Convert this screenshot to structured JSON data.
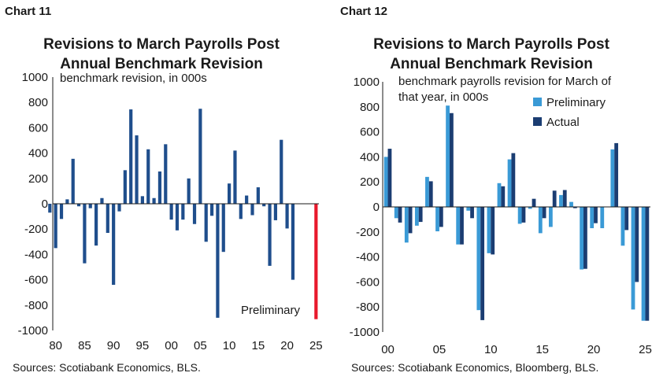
{
  "chart_data": [
    {
      "type": "bar",
      "label": "Chart 11",
      "title": "Revisions to March Payrolls Post Annual Benchmark Revision",
      "title_lines": [
        "Revisions to March Payrolls Post",
        "Annual Benchmark Revision"
      ],
      "annotation_lines": [
        "benchmark revision, in 000s"
      ],
      "source": "Sources: Scotiabank Economics, BLS.",
      "ylim": [
        -1000,
        1000
      ],
      "yticks": [
        1000,
        800,
        600,
        400,
        200,
        0,
        -200,
        -400,
        -600,
        -800,
        -1000
      ],
      "x_tick_labels": [
        "80",
        "85",
        "90",
        "95",
        "00",
        "05",
        "10",
        "15",
        "20",
        "25"
      ],
      "x_tick_years": [
        1980,
        1985,
        1990,
        1995,
        2000,
        2005,
        2010,
        2015,
        2020,
        2025
      ],
      "xlim": [
        1979.5,
        2025.5
      ],
      "colors": {
        "bars": "#1f4e8c",
        "preliminary": "#e8192c"
      },
      "x": [
        1979,
        1980,
        1981,
        1982,
        1983,
        1984,
        1985,
        1986,
        1987,
        1988,
        1989,
        1990,
        1991,
        1992,
        1993,
        1994,
        1995,
        1996,
        1997,
        1998,
        1999,
        2000,
        2001,
        2002,
        2003,
        2004,
        2005,
        2006,
        2007,
        2008,
        2009,
        2010,
        2011,
        2012,
        2013,
        2014,
        2015,
        2016,
        2017,
        2018,
        2019,
        2020,
        2021,
        2022,
        2023,
        2024,
        2025
      ],
      "values": [
        -70,
        -350,
        -120,
        35,
        355,
        -20,
        -470,
        -35,
        -330,
        45,
        -230,
        -640,
        -60,
        265,
        745,
        540,
        60,
        430,
        45,
        255,
        470,
        -125,
        -210,
        -125,
        200,
        -160,
        750,
        -300,
        -95,
        -900,
        -380,
        160,
        420,
        -120,
        65,
        -90,
        130,
        -20,
        -490,
        -130,
        505,
        -195,
        -600,
        null,
        null,
        null,
        null
      ],
      "preliminary": {
        "x": 2025,
        "value": -911,
        "label": "Preliminary"
      }
    },
    {
      "type": "bar",
      "label": "Chart 12",
      "title": "Revisions to March Payrolls Post Annual Benchmark Revision",
      "title_lines": [
        "Revisions to March Payrolls Post",
        "Annual Benchmark Revision"
      ],
      "annotation_lines": [
        "benchmark payrolls revision for March of",
        "that year, in 000s"
      ],
      "source": "Sources: Scotiabank Economics, Bloomberg, BLS.",
      "ylim": [
        -1000,
        1000
      ],
      "yticks": [
        1000,
        800,
        600,
        400,
        200,
        0,
        -200,
        -400,
        -600,
        -800,
        -1000
      ],
      "x_tick_labels": [
        "00",
        "05",
        "10",
        "15",
        "20",
        "25"
      ],
      "x_tick_years": [
        2000,
        2005,
        2010,
        2015,
        2020,
        2025
      ],
      "xlim": [
        1999.5,
        2025.5
      ],
      "legend": "top-right",
      "categories": [
        2000,
        2001,
        2002,
        2003,
        2004,
        2005,
        2006,
        2007,
        2008,
        2009,
        2010,
        2011,
        2012,
        2013,
        2014,
        2015,
        2016,
        2017,
        2018,
        2019,
        2020,
        2021,
        2022,
        2023,
        2024,
        2025
      ],
      "series": [
        {
          "name": "Preliminary",
          "color": "#3a9ad6",
          "values": [
            400,
            -90,
            -285,
            -150,
            240,
            -195,
            810,
            -300,
            -30,
            -825,
            -370,
            190,
            380,
            -135,
            -15,
            -210,
            -160,
            95,
            40,
            -500,
            -170,
            -170,
            460,
            -310,
            -820,
            -910
          ]
        },
        {
          "name": "Actual",
          "color": "#1b3d72",
          "values": [
            465,
            -125,
            -210,
            -120,
            205,
            -160,
            750,
            -300,
            -90,
            -905,
            -380,
            165,
            430,
            -125,
            65,
            -90,
            130,
            135,
            -10,
            -495,
            -130,
            0,
            510,
            -185,
            -600,
            -910
          ]
        }
      ]
    }
  ]
}
